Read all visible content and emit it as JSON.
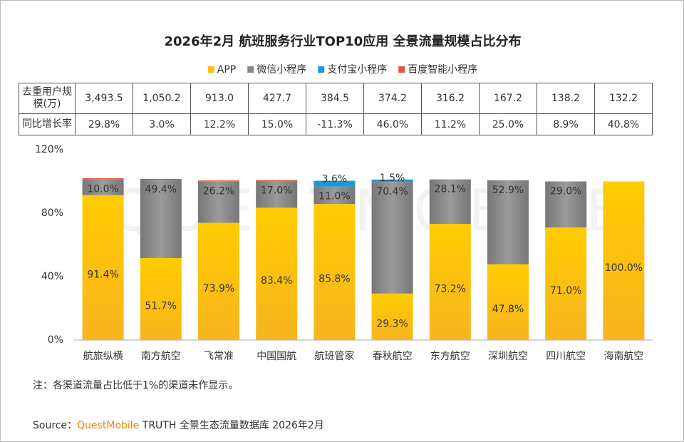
{
  "chart_data": {
    "type": "stacked_bar",
    "title": "2026年2月 航班服务行业TOP10应用 全景流量规模占比分布",
    "categories": [
      "航旅纵横",
      "南方航空",
      "飞常准",
      "中国国航",
      "航班管家",
      "春秋航空",
      "东方航空",
      "深圳航空",
      "四川航空",
      "海南航空"
    ],
    "series": [
      {
        "name": "APP",
        "color": "#FFC20E",
        "values": [
          91.4,
          51.7,
          73.9,
          83.4,
          85.8,
          29.3,
          73.2,
          47.8,
          71.0,
          100.0
        ],
        "value_labels": [
          "91.4%",
          "51.7%",
          "73.9%",
          "83.4%",
          "85.8%",
          "29.3%",
          "73.2%",
          "47.8%",
          "71.0%",
          "100.0%"
        ]
      },
      {
        "name": "微信小程序",
        "color": "#8A8A8A",
        "values": [
          10.0,
          49.4,
          26.2,
          17.0,
          11.0,
          70.4,
          28.1,
          52.9,
          29.0,
          null
        ],
        "value_labels": [
          "10.0%",
          "49.4%",
          "26.2%",
          "17.0%",
          "11.0%",
          "70.4%",
          "28.1%",
          "52.9%",
          "29.0%",
          null
        ]
      },
      {
        "name": "支付宝小程序",
        "color": "#1C9AD6",
        "values": [
          null,
          0.5,
          null,
          null,
          3.6,
          1.5,
          null,
          null,
          null,
          null
        ],
        "value_labels": [
          null,
          null,
          null,
          null,
          "3.6%",
          "1.5%",
          null,
          null,
          null,
          null
        ]
      },
      {
        "name": "百度智能小程序",
        "color": "#E4573A",
        "values": [
          0.6,
          null,
          0.5,
          0.5,
          null,
          null,
          null,
          null,
          null,
          null
        ],
        "value_labels": [
          null,
          null,
          null,
          null,
          null,
          null,
          null,
          null,
          null,
          null
        ]
      }
    ],
    "ylim": [
      0,
      120
    ],
    "yticks": [
      {
        "value": 0,
        "label": "0%"
      },
      {
        "value": 40,
        "label": "40%"
      },
      {
        "value": 80,
        "label": "80%"
      },
      {
        "value": 120,
        "label": "120%"
      }
    ],
    "grid": false
  },
  "table": {
    "rows": [
      {
        "label": "去重用户规模(万)",
        "cells": [
          "3,493.5",
          "1,050.2",
          "913.0",
          "427.7",
          "384.5",
          "374.2",
          "316.2",
          "167.2",
          "138.2",
          "132.2"
        ]
      },
      {
        "label": "同比增长率",
        "cells": [
          "29.8%",
          "3.0%",
          "12.2%",
          "15.0%",
          "-11.3%",
          "46.0%",
          "11.2%",
          "25.0%",
          "8.9%",
          "40.8%"
        ]
      }
    ]
  },
  "note": "注：各渠道流量占比低于1%的渠道未作显示。",
  "source": {
    "prefix": "Source：",
    "brand": "QuestMobile",
    "text": "TRUTH 全景生态流量数据库 2026年2月"
  },
  "watermark": "QUESTMOBILE"
}
